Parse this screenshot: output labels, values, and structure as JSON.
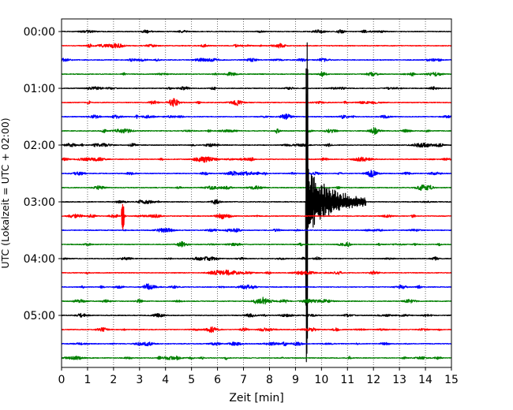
{
  "chart_data": {
    "type": "line",
    "title": "",
    "xlabel": "Zeit  [min]",
    "ylabel": "UTC (Lokalzeit = UTC + 02:00)",
    "xlim": [
      0,
      15
    ],
    "x_ticks": [
      "0",
      "1",
      "2",
      "3",
      "4",
      "5",
      "6",
      "7",
      "8",
      "9",
      "10",
      "11",
      "12",
      "13",
      "14",
      "15"
    ],
    "y_tick_labels": [
      "00:00",
      "01:00",
      "02:00",
      "03:00",
      "04:00",
      "05:00"
    ],
    "grid": "vertical dotted at every minute",
    "row_interval_min": 15,
    "trace_colors": [
      "#000000",
      "#ff0000",
      "#0000ff",
      "#008000"
    ],
    "rows": [
      {
        "start": "00:00",
        "color": "#000000"
      },
      {
        "start": "00:15",
        "color": "#ff0000"
      },
      {
        "start": "00:30",
        "color": "#0000ff"
      },
      {
        "start": "00:45",
        "color": "#008000"
      },
      {
        "start": "01:00",
        "color": "#000000"
      },
      {
        "start": "01:15",
        "color": "#ff0000"
      },
      {
        "start": "01:30",
        "color": "#0000ff"
      },
      {
        "start": "01:45",
        "color": "#008000"
      },
      {
        "start": "02:00",
        "color": "#000000"
      },
      {
        "start": "02:15",
        "color": "#ff0000"
      },
      {
        "start": "02:30",
        "color": "#0000ff"
      },
      {
        "start": "02:45",
        "color": "#008000"
      },
      {
        "start": "03:00",
        "color": "#000000"
      },
      {
        "start": "03:15",
        "color": "#ff0000"
      },
      {
        "start": "03:30",
        "color": "#0000ff"
      },
      {
        "start": "03:45",
        "color": "#008000"
      },
      {
        "start": "04:00",
        "color": "#000000"
      },
      {
        "start": "04:15",
        "color": "#ff0000"
      },
      {
        "start": "04:30",
        "color": "#0000ff"
      },
      {
        "start": "04:45",
        "color": "#008000"
      },
      {
        "start": "05:00",
        "color": "#000000"
      },
      {
        "start": "05:15",
        "color": "#ff0000"
      },
      {
        "start": "05:30",
        "color": "#0000ff"
      },
      {
        "start": "05:45",
        "color": "#008000"
      }
    ],
    "events": [
      {
        "row": "03:00",
        "onset_min": 9.4,
        "duration_min": 2.3,
        "description_shown": "large seismic signal, coda decaying to ~11.7 min"
      },
      {
        "row": "03:15",
        "onset_min": 2.35,
        "duration_min": 0.1,
        "description_shown": "short spike"
      }
    ]
  }
}
